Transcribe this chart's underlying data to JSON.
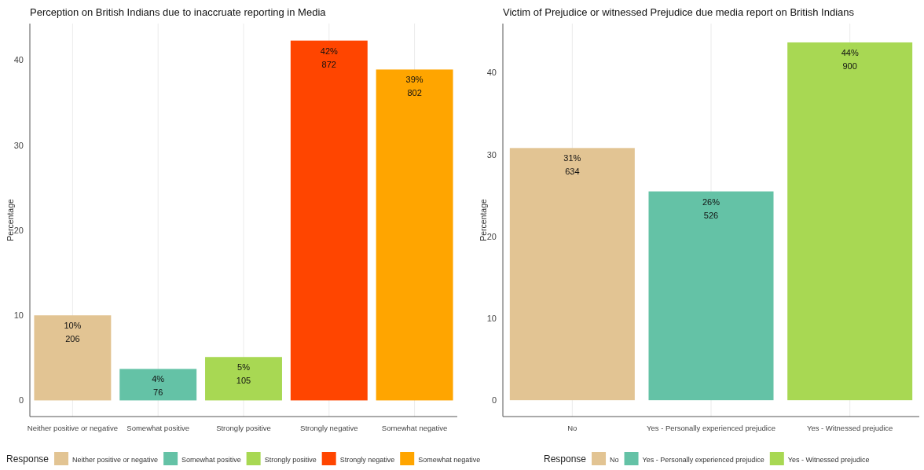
{
  "chart_data": [
    {
      "type": "bar",
      "title": "Perception on British Indians due to inaccruate reporting in Media",
      "ylabel": "Percentage",
      "legend_title": "Response",
      "categories": [
        "Neither positive or negative",
        "Somewhat positive",
        "Strongly positive",
        "Strongly negative",
        "Somewhat negative"
      ],
      "series": [
        {
          "name": "Neither positive or negative",
          "color": "#e2c493",
          "values": [
            10.0,
            null,
            null,
            null,
            null
          ],
          "value_labels": [
            "10%\n206",
            null,
            null,
            null,
            null
          ]
        },
        {
          "name": "Somewhat positive",
          "color": "#64c2a6",
          "values": [
            null,
            3.7,
            null,
            null,
            null
          ],
          "value_labels": [
            null,
            "4%\n76",
            null,
            null,
            null
          ]
        },
        {
          "name": "Strongly positive",
          "color": "#a8d853",
          "values": [
            null,
            null,
            5.1,
            null,
            null
          ],
          "value_labels": [
            null,
            null,
            "5%\n105",
            null,
            null
          ]
        },
        {
          "name": "Strongly negative",
          "color": "#ff4500",
          "values": [
            null,
            null,
            null,
            42.3,
            null
          ],
          "value_labels": [
            null,
            null,
            null,
            "42%\n872",
            null
          ]
        },
        {
          "name": "Somewhat negative",
          "color": "#ffa500",
          "values": [
            null,
            null,
            null,
            null,
            38.9
          ],
          "value_labels": [
            null,
            null,
            null,
            null,
            "39%\n802"
          ]
        }
      ],
      "ylim": [
        -1.9,
        44.3
      ],
      "yticks": [
        0,
        10,
        20,
        30,
        40
      ],
      "grid": "x",
      "legend": "bottom"
    },
    {
      "type": "bar",
      "title": "Victim of Prejudice or witnessed Prejudice due media report on British Indians",
      "ylabel": "Percentage",
      "legend_title": "Response",
      "categories": [
        "No",
        "Yes - Personally experienced prejudice",
        "Yes - Witnessed prejudice"
      ],
      "series": [
        {
          "name": "No",
          "color": "#e2c493",
          "values": [
            30.8,
            null,
            null
          ],
          "value_labels": [
            "31%\n634",
            null,
            null
          ]
        },
        {
          "name": "Yes - Personally experienced prejudice",
          "color": "#64c2a6",
          "values": [
            null,
            25.5,
            null
          ],
          "value_labels": [
            null,
            "26%\n526",
            null
          ]
        },
        {
          "name": "Yes - Witnessed prejudice",
          "color": "#a8d853",
          "values": [
            null,
            null,
            43.7
          ],
          "value_labels": [
            null,
            null,
            "44%\n900"
          ]
        }
      ],
      "ylim": [
        -2.0,
        46.0
      ],
      "yticks": [
        0,
        10,
        20,
        30,
        40
      ],
      "grid": "x",
      "legend": "bottom"
    }
  ]
}
